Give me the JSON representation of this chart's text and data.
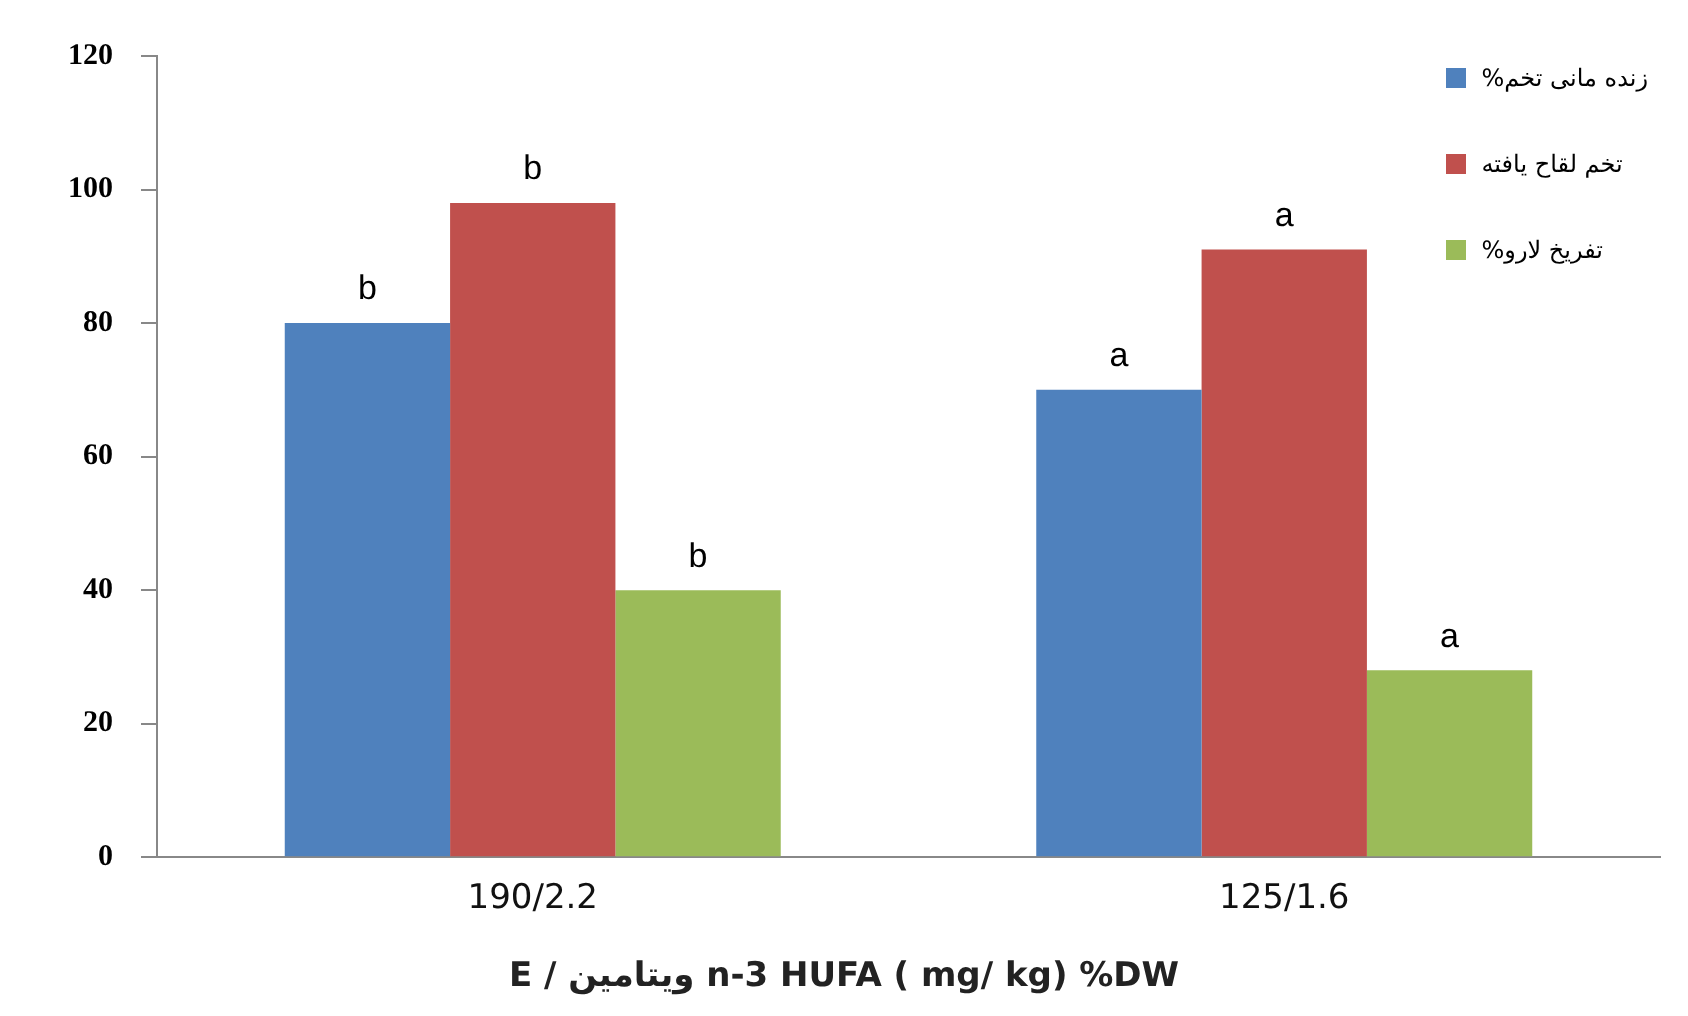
{
  "chart_data": {
    "type": "bar",
    "xlabel": "E / ویتامین n-3 HUFA ( mg/ kg) %DW",
    "categories": [
      "190/2.2",
      "125/1.6"
    ],
    "series": [
      {
        "name": "زنده مانی تخم%",
        "color": "#4f81bd",
        "values": [
          80,
          70
        ],
        "value_labels": [
          "b",
          "a"
        ]
      },
      {
        "name": "تخم لقاح یافته",
        "color": "#c0504d",
        "values": [
          98,
          91
        ],
        "value_labels": [
          "b",
          "a"
        ]
      },
      {
        "name": "تفریخ لارو%",
        "color": "#9bbb59",
        "values": [
          40,
          28
        ],
        "value_labels": [
          "b",
          "a"
        ]
      }
    ],
    "ylim": [
      0,
      120
    ],
    "yticks": [
      0,
      20,
      40,
      60,
      80,
      100,
      120
    ],
    "grid": false,
    "legend": "top right"
  }
}
